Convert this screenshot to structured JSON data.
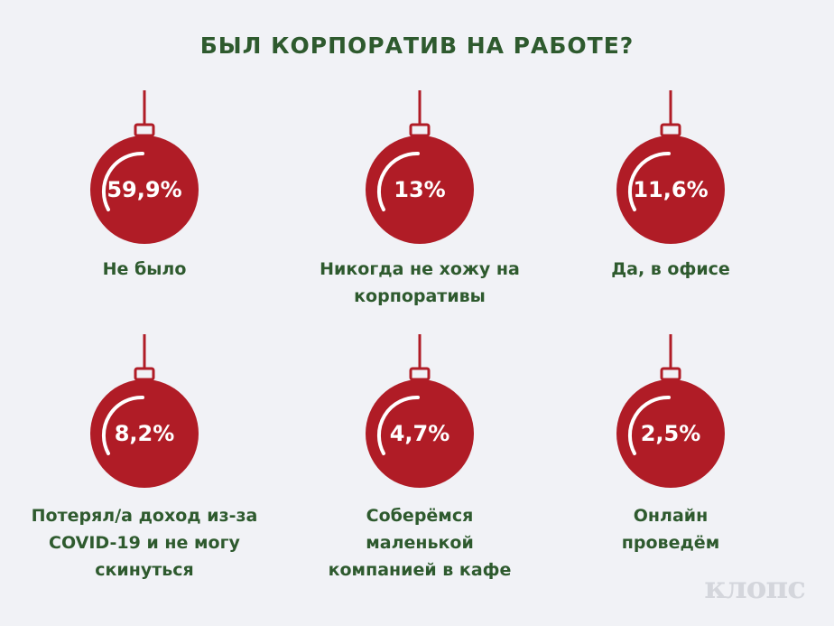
{
  "title": "БЫЛ КОРПОРАТИВ НА РАБОТЕ?",
  "logo": "клопс",
  "colors": {
    "ball": "#b01c26",
    "text": "#2e5a2e",
    "background": "#f1f2f6"
  },
  "chart_data": {
    "type": "table",
    "title": "БЫЛ КОРПОРАТИВ НА РАБОТЕ?",
    "items": [
      {
        "value_label": "59,9%",
        "value": 59.9,
        "label_lines": [
          "Не было"
        ]
      },
      {
        "value_label": "13%",
        "value": 13,
        "label_lines": [
          "Никогда не хожу на",
          "корпоративы"
        ]
      },
      {
        "value_label": "11,6%",
        "value": 11.6,
        "label_lines": [
          "Да, в офисе"
        ]
      },
      {
        "value_label": "8,2%",
        "value": 8.2,
        "label_lines": [
          "Потерял/а доход из-за",
          "COVID-19 и не могу",
          "скинуться"
        ]
      },
      {
        "value_label": "4,7%",
        "value": 4.7,
        "label_lines": [
          "Соберёмся",
          "маленькой",
          "компанией в кафе"
        ]
      },
      {
        "value_label": "2,5%",
        "value": 2.5,
        "label_lines": [
          "Онлайн",
          "проведём"
        ]
      }
    ]
  }
}
